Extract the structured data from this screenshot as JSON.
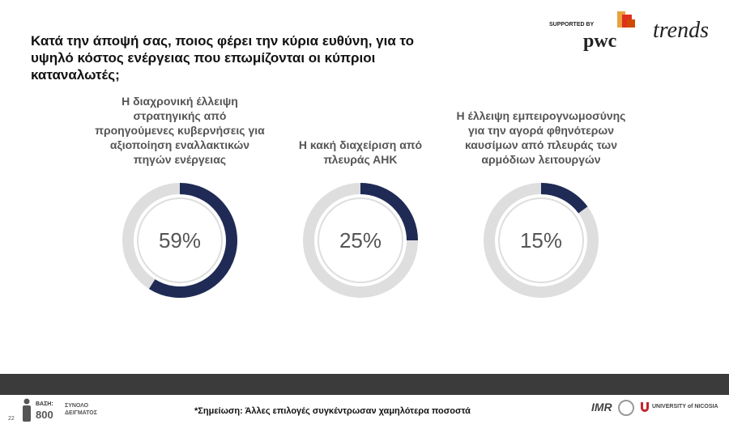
{
  "header": {
    "title": "Κατά την άποψή σας, ποιος φέρει την κύρια ευθύνη, για το υψηλό κόστος ενέργειας που επωμίζονται οι κύπριοι καταναλωτές;",
    "supported_by": "SUPPORTED BY",
    "sponsor": "pwc",
    "brand": "trends"
  },
  "chart_data": [
    {
      "type": "donut",
      "title": "Η διαχρονική έλλειψη στρατηγικής από προηγούμενες κυβερνήσεις για αξιοποίηση εναλλακτικών πηγών ενέργειας",
      "values": [
        59
      ],
      "value_labels": [
        "59%"
      ],
      "total": 100,
      "color": "#1f2b55",
      "track_color": "#dedede"
    },
    {
      "type": "donut",
      "title": "Η κακή διαχείριση από πλευράς ΑΗΚ",
      "values": [
        25
      ],
      "value_labels": [
        "25%"
      ],
      "total": 100,
      "color": "#1f2b55",
      "track_color": "#dedede"
    },
    {
      "type": "donut",
      "title": "Η έλλειψη εμπειρογνωμοσύνης για την αγορά φθηνότερων καυσίμων από πλευράς των αρμόδιων λειτουργών",
      "values": [
        15
      ],
      "value_labels": [
        "15%"
      ],
      "total": 100,
      "color": "#1f2b55",
      "track_color": "#dedede"
    }
  ],
  "footer": {
    "page": 22,
    "base_label": "ΒΑΣΗ:",
    "base_value": 800,
    "base_caption": "ΣΥΝΟΛΟ ΔΕΙΓΜΑΤΟΣ",
    "note": "*Σημείωση: Άλλες επιλογές συγκέντρωσαν χαμηλότερα ποσοστά",
    "imr": "IMR",
    "university": "UNIVERSITY of NICOSIA"
  }
}
